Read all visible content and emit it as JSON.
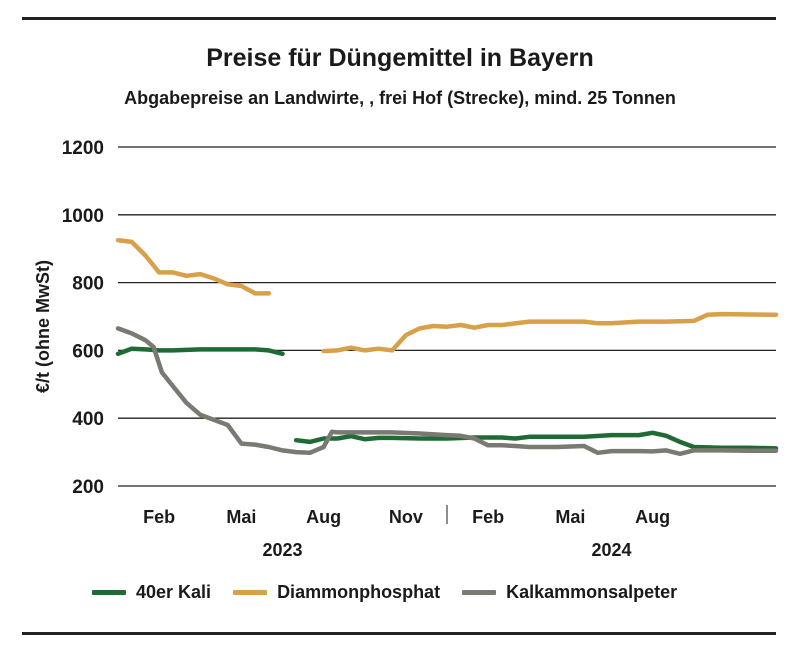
{
  "colors": {
    "kali": "#1f6b36",
    "diammon": "#d9a04a",
    "kalkammon": "#7a7a72",
    "grid": "#222222"
  },
  "chart_data": {
    "type": "line",
    "title": "Preise für Düngemittel in Bayern",
    "subtitle": "Abgabepreise an Landwirte, , frei Hof (Strecke), mind. 25 Tonnen",
    "ylabel": "€/t (ohne MwSt)",
    "ylim": [
      200,
      1200
    ],
    "yticks": [
      "200",
      "400",
      "600",
      "800",
      "1000",
      "1200"
    ],
    "xlim": [
      0,
      24
    ],
    "xticks": [
      {
        "x": 1.5,
        "label": "Feb"
      },
      {
        "x": 4.5,
        "label": "Mai"
      },
      {
        "x": 7.5,
        "label": "Aug"
      },
      {
        "x": 10.5,
        "label": "Nov"
      },
      {
        "x": 13.5,
        "label": "Feb"
      },
      {
        "x": 16.5,
        "label": "Mai"
      },
      {
        "x": 19.5,
        "label": "Aug"
      }
    ],
    "year_labels": [
      {
        "x": 6,
        "label": "2023"
      },
      {
        "x": 18,
        "label": "2024"
      }
    ],
    "year_divider_x": 12,
    "grid": true,
    "legend_position": "bottom",
    "series": [
      {
        "name": "40er Kali",
        "color_key": "kali",
        "segments": [
          [
            [
              0,
              590
            ],
            [
              0.5,
              605
            ],
            [
              1,
              603
            ],
            [
              1.5,
              600
            ],
            [
              2,
              600
            ],
            [
              3,
              603
            ],
            [
              4,
              603
            ],
            [
              5,
              603
            ],
            [
              5.5,
              600
            ],
            [
              6,
              590
            ]
          ],
          [
            [
              6.5,
              335
            ],
            [
              7,
              330
            ],
            [
              7.5,
              340
            ],
            [
              8,
              340
            ],
            [
              8.5,
              347
            ],
            [
              9,
              338
            ],
            [
              9.5,
              342
            ],
            [
              10,
              342
            ],
            [
              11,
              340
            ],
            [
              12,
              340
            ],
            [
              13,
              343
            ],
            [
              14,
              343
            ],
            [
              14.5,
              340
            ],
            [
              15,
              345
            ],
            [
              16,
              345
            ],
            [
              17,
              345
            ],
            [
              18,
              350
            ],
            [
              19,
              350
            ],
            [
              19.5,
              357
            ],
            [
              20,
              348
            ],
            [
              20.5,
              330
            ],
            [
              21,
              315
            ],
            [
              22,
              313
            ],
            [
              23,
              313
            ],
            [
              24,
              311
            ]
          ]
        ]
      },
      {
        "name": "Diammonphosphat",
        "color_key": "diammon",
        "segments": [
          [
            [
              0,
              925
            ],
            [
              0.5,
              920
            ],
            [
              1,
              880
            ],
            [
              1.5,
              830
            ],
            [
              2,
              830
            ],
            [
              2.5,
              820
            ],
            [
              3,
              825
            ],
            [
              3.5,
              812
            ],
            [
              4,
              795
            ],
            [
              4.5,
              790
            ],
            [
              5,
              768
            ],
            [
              5.5,
              768
            ]
          ],
          [
            [
              7.5,
              598
            ],
            [
              8,
              600
            ],
            [
              8.5,
              608
            ],
            [
              9,
              600
            ],
            [
              9.5,
              605
            ],
            [
              10,
              600
            ],
            [
              10.5,
              645
            ],
            [
              11,
              665
            ],
            [
              11.5,
              672
            ],
            [
              12,
              670
            ],
            [
              12.5,
              675
            ],
            [
              13,
              667
            ],
            [
              13.5,
              675
            ],
            [
              14,
              675
            ],
            [
              15,
              685
            ],
            [
              16,
              685
            ],
            [
              17,
              685
            ],
            [
              17.5,
              680
            ],
            [
              18,
              680
            ],
            [
              19,
              685
            ],
            [
              20,
              685
            ],
            [
              21,
              687
            ],
            [
              21.5,
              705
            ],
            [
              22,
              707
            ],
            [
              24,
              705
            ]
          ]
        ]
      },
      {
        "name": "Kalkammonsalpeter",
        "color_key": "kalkammon",
        "segments": [
          [
            [
              0,
              665
            ],
            [
              0.5,
              650
            ],
            [
              1,
              630
            ],
            [
              1.3,
              610
            ],
            [
              1.6,
              535
            ],
            [
              2,
              495
            ],
            [
              2.5,
              445
            ],
            [
              3,
              410
            ],
            [
              3.5,
              395
            ],
            [
              4,
              380
            ],
            [
              4.5,
              325
            ],
            [
              5,
              322
            ],
            [
              5.5,
              315
            ],
            [
              6,
              305
            ],
            [
              6.5,
              300
            ],
            [
              7,
              298
            ],
            [
              7.5,
              315
            ],
            [
              7.8,
              360
            ],
            [
              8,
              358
            ],
            [
              9,
              358
            ],
            [
              10,
              358
            ],
            [
              11,
              355
            ],
            [
              12,
              350
            ],
            [
              12.5,
              348
            ],
            [
              13,
              340
            ],
            [
              13.5,
              320
            ],
            [
              14,
              320
            ],
            [
              14.5,
              318
            ],
            [
              15,
              315
            ],
            [
              16,
              315
            ],
            [
              17,
              318
            ],
            [
              17.5,
              298
            ],
            [
              18,
              303
            ],
            [
              19,
              303
            ],
            [
              19.5,
              302
            ],
            [
              20,
              305
            ],
            [
              20.5,
              295
            ],
            [
              21,
              305
            ],
            [
              22,
              305
            ],
            [
              23,
              304
            ],
            [
              24,
              304
            ]
          ]
        ]
      }
    ]
  }
}
